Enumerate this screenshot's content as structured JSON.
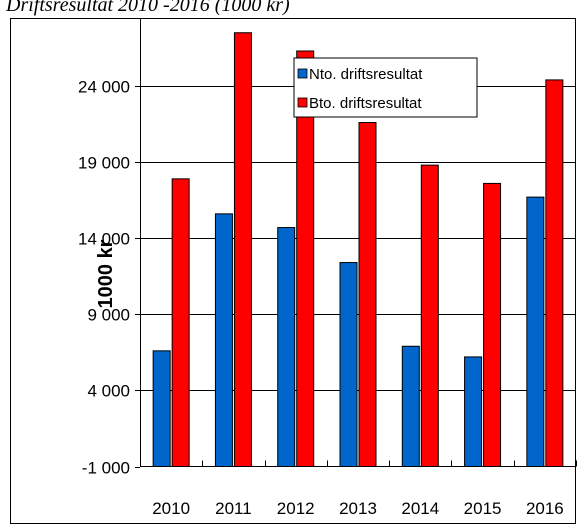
{
  "caption": "Driftsresultat 2010 -2016 (1000 kr)",
  "chart_data": {
    "type": "bar",
    "title": "Driftsresultat 2010 -2016 (1000 kr)",
    "ylabel": "1000 kr",
    "xlabel": "",
    "categories": [
      "2010",
      "2011",
      "2012",
      "2013",
      "2014",
      "2015",
      "2016"
    ],
    "yticks": [
      -1000,
      4000,
      9000,
      14000,
      19000,
      24000
    ],
    "ytick_labels": [
      "-1 000",
      "4 000",
      "9 000",
      "14 000",
      "19 000",
      "24 000"
    ],
    "ylim": [
      -1000,
      27500
    ],
    "grid": true,
    "legend_position": "top-right",
    "series": [
      {
        "name": "Nto. driftsresultat",
        "color": "#0066cc",
        "values": [
          6600,
          15600,
          14700,
          12400,
          6900,
          6200,
          16700
        ]
      },
      {
        "name": "Bto. driftsresultat",
        "color": "#ff0000",
        "values": [
          17900,
          27500,
          26300,
          21600,
          18800,
          17600,
          24400
        ]
      }
    ]
  }
}
